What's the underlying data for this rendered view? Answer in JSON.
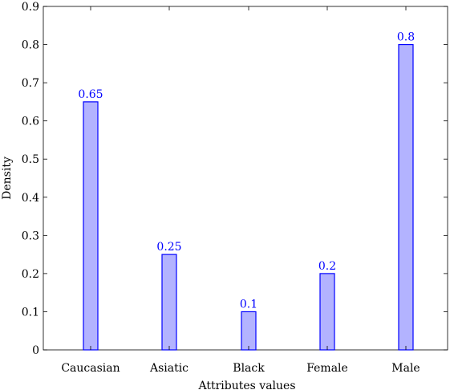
{
  "chart_data": {
    "type": "bar",
    "categories": [
      "Caucasian",
      "Asiatic",
      "Black",
      "Female",
      "Male"
    ],
    "values": [
      0.65,
      0.25,
      0.1,
      0.2,
      0.8
    ],
    "data_labels": [
      "0.65",
      "0.25",
      "0.1",
      "0.2",
      "0.8"
    ],
    "xlabel": "Attributes values",
    "ylabel": "Density",
    "ylim": [
      0,
      0.9
    ],
    "yticks": [
      0,
      0.1,
      0.2,
      0.3,
      0.4,
      0.5,
      0.6,
      0.7,
      0.8,
      0.9
    ],
    "ytick_labels": [
      "0",
      "0.1",
      "0.2",
      "0.3",
      "0.4",
      "0.5",
      "0.6",
      "0.7",
      "0.8",
      "0.9"
    ],
    "grid": false,
    "legend": false,
    "colors": {
      "bar_fill": "#b3b3ff",
      "bar_stroke": "#0000ff",
      "label_color": "#0000ff",
      "axis": "#000000"
    }
  }
}
